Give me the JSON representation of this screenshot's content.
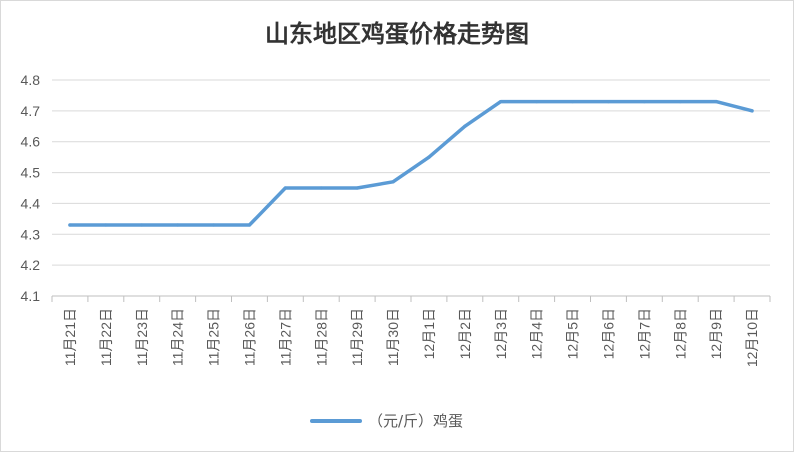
{
  "chart_data": {
    "type": "line",
    "title": "山东地区鸡蛋价格走势图",
    "categories": [
      "11月21日",
      "11月22日",
      "11月23日",
      "11月24日",
      "11月25日",
      "11月26日",
      "11月27日",
      "11月28日",
      "11月29日",
      "11月30日",
      "12月1日",
      "12月2日",
      "12月3日",
      "12月4日",
      "12月5日",
      "12月6日",
      "12月7日",
      "12月8日",
      "12月9日",
      "12月10日"
    ],
    "series": [
      {
        "name": "（元/斤）鸡蛋",
        "values": [
          4.33,
          4.33,
          4.33,
          4.33,
          4.33,
          4.33,
          4.45,
          4.45,
          4.45,
          4.47,
          4.55,
          4.65,
          4.73,
          4.73,
          4.73,
          4.73,
          4.73,
          4.73,
          4.73,
          4.7
        ]
      }
    ],
    "ylim": [
      4.1,
      4.8
    ],
    "yticks": [
      "4.1",
      "4.2",
      "4.3",
      "4.4",
      "4.5",
      "4.6",
      "4.7",
      "4.8"
    ],
    "grid": true,
    "legend": "bottom",
    "color": "#5b9bd5"
  }
}
